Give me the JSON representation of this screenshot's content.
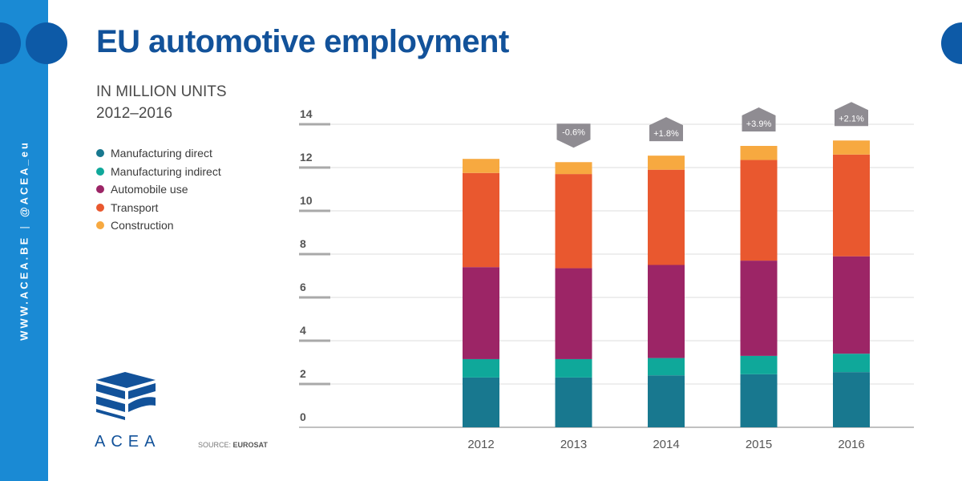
{
  "sidebar": {
    "website": "WWW.ACEA.BE",
    "separator": "|",
    "handle": "@ACEA_eu"
  },
  "title": "EU automotive employment",
  "subtitle_line1": "IN MILLION UNITS",
  "subtitle_line2": "2012–2016",
  "brand": {
    "name": "ACEA"
  },
  "source": {
    "label": "SOURCE:",
    "value": "EUROSAT"
  },
  "colors": {
    "sidebar": "#1a8ad4",
    "title": "#12529a",
    "badge": "#8f8c92"
  },
  "chart_data": {
    "type": "bar",
    "stacked": true,
    "categories": [
      "2012",
      "2013",
      "2014",
      "2015",
      "2016"
    ],
    "series": [
      {
        "name": "Manufacturing direct",
        "color": "#18788f",
        "values": [
          2.3,
          2.3,
          2.4,
          2.45,
          2.55
        ]
      },
      {
        "name": "Manufacturing indirect",
        "color": "#0fa89a",
        "values": [
          0.85,
          0.85,
          0.8,
          0.85,
          0.85
        ]
      },
      {
        "name": "Automobile use",
        "color": "#9c2566",
        "values": [
          4.25,
          4.2,
          4.3,
          4.4,
          4.5
        ]
      },
      {
        "name": "Transport",
        "color": "#e9582f",
        "values": [
          4.35,
          4.35,
          4.4,
          4.65,
          4.7
        ]
      },
      {
        "name": "Construction",
        "color": "#f7a940",
        "values": [
          0.65,
          0.55,
          0.65,
          0.65,
          0.65
        ]
      }
    ],
    "growth": [
      {
        "category": "2013",
        "label": "-0.6%",
        "direction": "down"
      },
      {
        "category": "2014",
        "label": "+1.8%",
        "direction": "up"
      },
      {
        "category": "2015",
        "label": "+3.9%",
        "direction": "up"
      },
      {
        "category": "2016",
        "label": "+2.1%",
        "direction": "up"
      }
    ],
    "yticks": [
      0,
      2,
      4,
      6,
      8,
      10,
      12,
      14
    ],
    "ylim": [
      0,
      14
    ],
    "grid": true,
    "legend_position": "left"
  }
}
